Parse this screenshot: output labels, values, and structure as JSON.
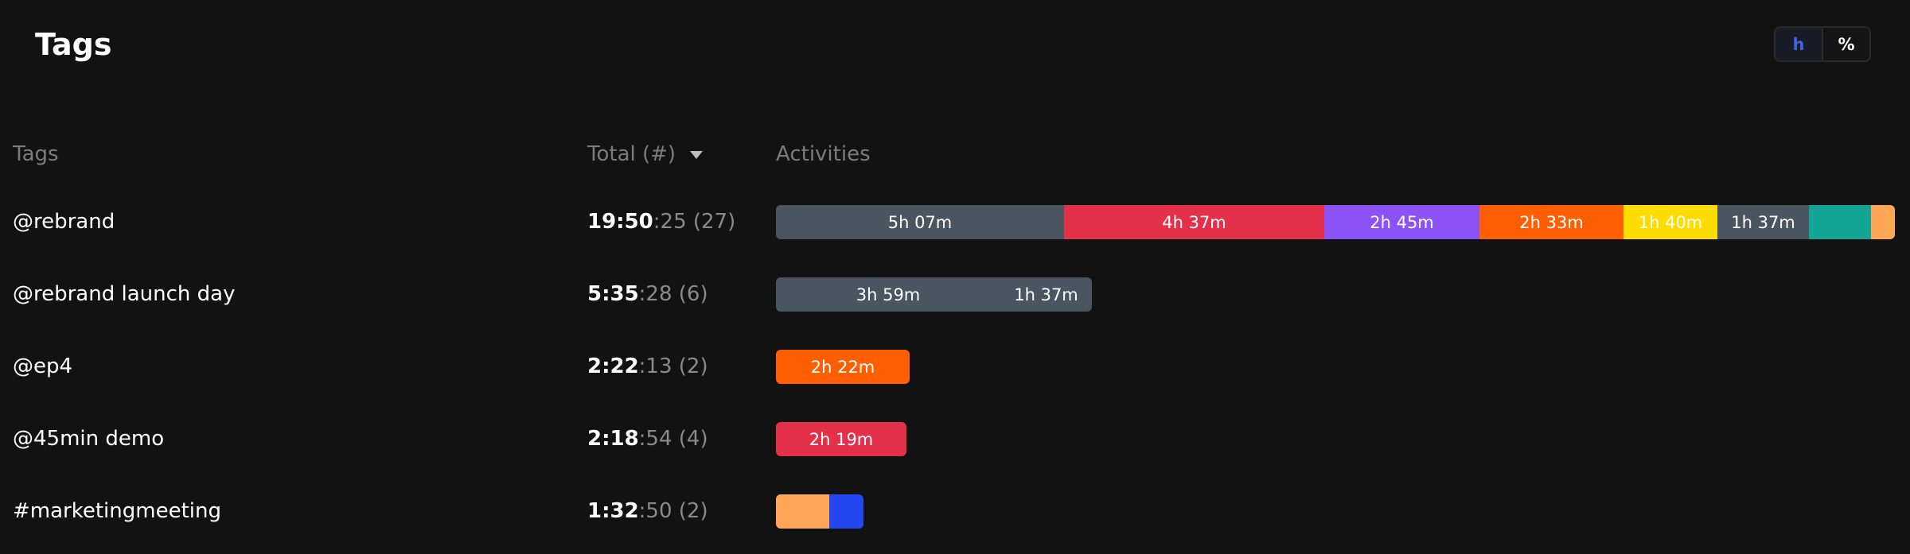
{
  "header": {
    "title": "Tags",
    "toggle": {
      "hours_label": "h",
      "percent_label": "%"
    }
  },
  "table": {
    "columns": {
      "tags": "Tags",
      "total": "Total (#)",
      "activities": "Activities"
    },
    "rows": [
      {
        "tag": "@rebrand",
        "total_main": "19:50",
        "total_sec": ":25",
        "count": "(27)",
        "segments": [
          {
            "label": "5h 07m",
            "color": "#4a5562",
            "minutes": 307
          },
          {
            "label": "4h 37m",
            "color": "#e5304a",
            "minutes": 277
          },
          {
            "label": "2h 45m",
            "color": "#8b52f6",
            "minutes": 165
          },
          {
            "label": "2h 33m",
            "color": "#ff5f00",
            "minutes": 153
          },
          {
            "label": "1h 40m",
            "color": "#ffdc00",
            "minutes": 100
          },
          {
            "label": "1h 37m",
            "color": "#4a5562",
            "minutes": 97
          },
          {
            "label": "",
            "color": "#12a594",
            "minutes": 66
          },
          {
            "label": "",
            "color": "#ffa657",
            "minutes": 25
          }
        ]
      },
      {
        "tag": "@rebrand launch day",
        "total_main": "5:35",
        "total_sec": ":28",
        "count": "(6)",
        "segments": [
          {
            "label": "3h 59m",
            "color": "#4a5562",
            "minutes": 239
          },
          {
            "label": "1h 37m",
            "color": "#4a5562",
            "minutes": 97
          }
        ]
      },
      {
        "tag": "@ep4",
        "total_main": "2:22",
        "total_sec": ":13",
        "count": "(2)",
        "segments": [
          {
            "label": "2h 22m",
            "color": "#ff5f00",
            "minutes": 142
          }
        ]
      },
      {
        "tag": "@45min demo",
        "total_main": "2:18",
        "total_sec": ":54",
        "count": "(4)",
        "segments": [
          {
            "label": "2h 19m",
            "color": "#e5304a",
            "minutes": 139
          }
        ]
      },
      {
        "tag": "#marketingmeeting",
        "total_main": "1:32",
        "total_sec": ":50",
        "count": "(2)",
        "segments": [
          {
            "label": "",
            "color": "#ffa657",
            "minutes": 57
          },
          {
            "label": "",
            "color": "#2547f0",
            "minutes": 36
          }
        ]
      }
    ]
  }
}
